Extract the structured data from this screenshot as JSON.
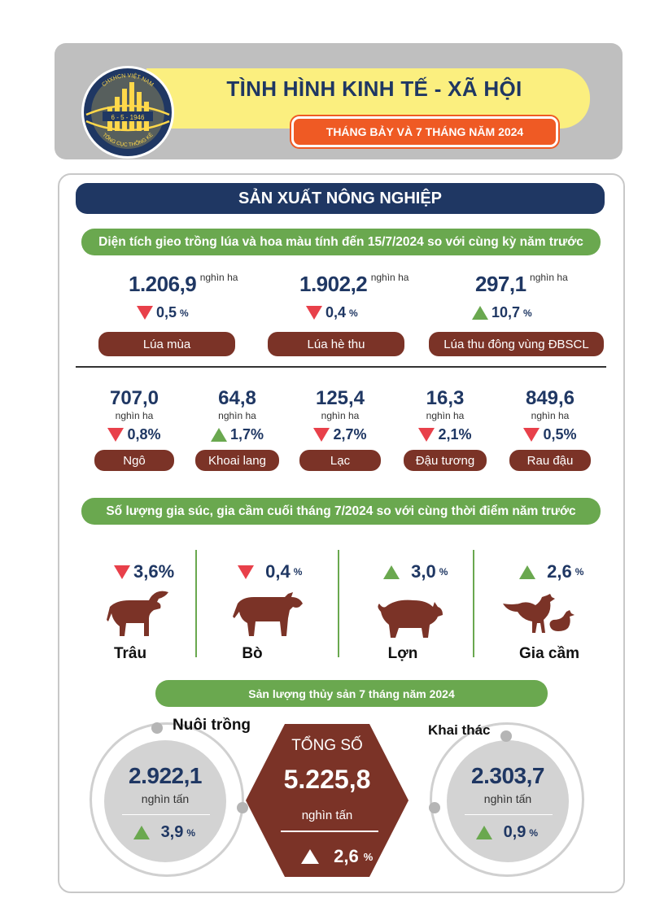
{
  "header": {
    "logo": {
      "top_text": "CHXHCN VIỆT NAM",
      "date": "6 - 5 - 1946",
      "bottom_text": "TỔNG CỤC THỐNG KÊ"
    },
    "title": "TÌNH HÌNH KINH TẾ - XÃ HỘI",
    "subtitle": "THÁNG BẢY VÀ 7 THÁNG NĂM 2024"
  },
  "section_title": "SẢN XUẤT NÔNG NGHIỆP",
  "crops": {
    "banner": "Diện tích gieo trồng lúa và hoa màu tính đến 15/7/2024 so với cùng kỳ năm trước",
    "main": [
      {
        "value": "1.206,9",
        "unit": "nghìn ha",
        "direction": "down",
        "change": "0,5",
        "pct": "%",
        "name": "Lúa mùa"
      },
      {
        "value": "1.902,2",
        "unit": "nghìn ha",
        "direction": "down",
        "change": "0,4",
        "pct": "%",
        "name": "Lúa hè thu"
      },
      {
        "value": "297,1",
        "unit": "nghìn ha",
        "direction": "up",
        "change": "10,7",
        "pct": "%",
        "name": "Lúa thu đông vùng ĐBSCL"
      }
    ],
    "secondary": [
      {
        "value": "707,0",
        "unit": "nghìn ha",
        "direction": "down",
        "change": "0,8%",
        "name": "Ngô"
      },
      {
        "value": "64,8",
        "unit": "nghìn ha",
        "direction": "up",
        "change": "1,7%",
        "name": "Khoai lang"
      },
      {
        "value": "125,4",
        "unit": "nghìn ha",
        "direction": "down",
        "change": "2,7%",
        "name": "Lạc"
      },
      {
        "value": "16,3",
        "unit": "nghìn ha",
        "direction": "down",
        "change": "2,1%",
        "name": "Đậu tương"
      },
      {
        "value": "849,6",
        "unit": "nghìn ha",
        "direction": "down",
        "change": "0,5%",
        "name": "Rau đậu"
      }
    ]
  },
  "livestock": {
    "banner": "Số lượng gia súc, gia cầm cuối tháng 7/2024 so với cùng thời điểm năm trước",
    "items": [
      {
        "direction": "down",
        "change": "3,6%",
        "pct": "",
        "name": "Trâu",
        "icon": "buffalo-icon"
      },
      {
        "direction": "down",
        "change": "0,4",
        "pct": "%",
        "name": "Bò",
        "icon": "cow-icon"
      },
      {
        "direction": "up",
        "change": "3,0",
        "pct": "%",
        "name": "Lợn",
        "icon": "pig-icon"
      },
      {
        "direction": "up",
        "change": "2,6",
        "pct": "%",
        "name": "Gia cầm",
        "icon": "poultry-icon"
      }
    ]
  },
  "fishery": {
    "banner": "Sản lượng thủy sản 7 tháng năm 2024",
    "farming": {
      "label": "Nuôi trồng",
      "value": "2.922,1",
      "unit": "nghìn tấn",
      "direction": "up",
      "change": "3,9",
      "pct": "%"
    },
    "total": {
      "label": "TỔNG SỐ",
      "value": "5.225,8",
      "unit": "nghìn tấn",
      "direction": "up",
      "change": "2,6",
      "pct": "%"
    },
    "catching": {
      "label": "Khai thác",
      "value": "2.303,7",
      "unit": "nghìn tấn",
      "direction": "up",
      "change": "0,9",
      "pct": "%"
    }
  },
  "colors": {
    "navy": "#1f3763",
    "green": "#6aa84f",
    "brown": "#7b3327",
    "red": "#e8404a",
    "orange": "#ef5a24",
    "yellow": "#fbef7f"
  }
}
